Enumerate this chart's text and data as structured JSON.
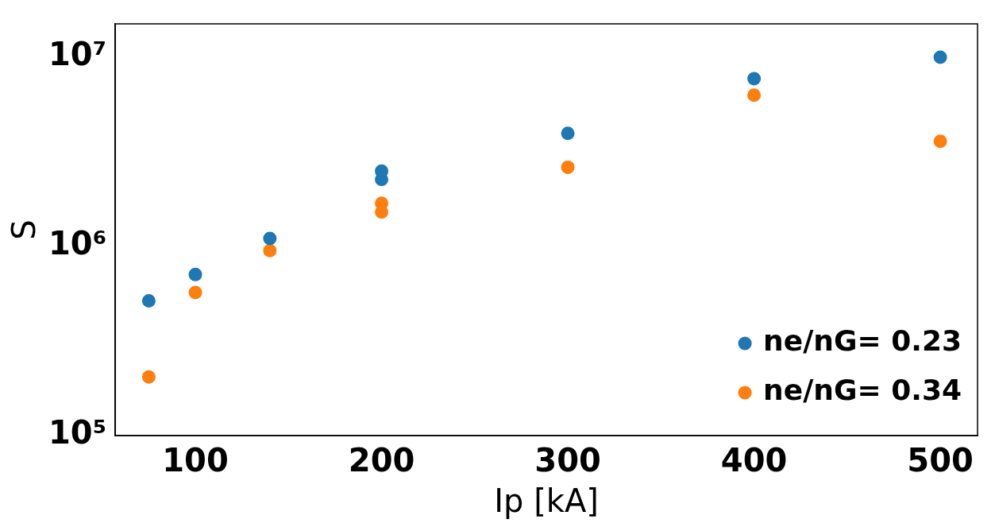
{
  "chart_data": {
    "type": "scatter",
    "xlabel": "Ip [kA]",
    "ylabel": "S",
    "log": "y",
    "grid": false,
    "legend": "bottom right",
    "marker": "circle",
    "xlim": [
      57,
      520
    ],
    "xticks": [
      100,
      200,
      300,
      400,
      500
    ],
    "ylim": [
      100000,
      15000000
    ],
    "yticks": [
      {
        "value": 100000,
        "label": "10⁵"
      },
      {
        "value": 1000000,
        "label": "10⁶"
      },
      {
        "value": 10000000,
        "label": "10⁷"
      }
    ],
    "series": [
      {
        "name": "ne/nG= 0.23",
        "color": "#1f77b4",
        "x": [
          75,
          100,
          140,
          200,
          200,
          300,
          400,
          500
        ],
        "values": [
          515000,
          710000,
          1100000,
          2500000,
          2260000,
          3960000,
          7700000,
          10000000
        ]
      },
      {
        "name": "ne/nG= 0.34",
        "color": "#ff7f0e",
        "x": [
          75,
          100,
          140,
          200,
          200,
          300,
          400,
          500
        ],
        "values": [
          204000,
          570000,
          950000,
          1690000,
          1520000,
          2620000,
          6300000,
          3590000
        ]
      }
    ]
  }
}
